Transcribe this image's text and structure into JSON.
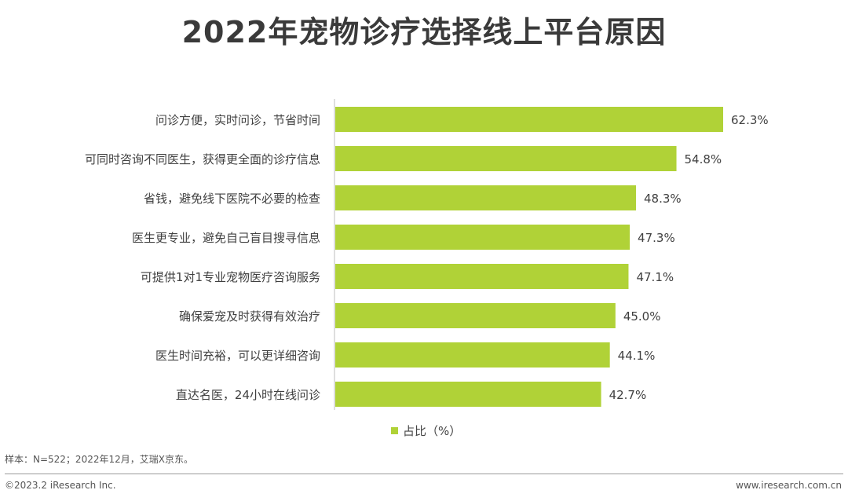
{
  "title": "2022年宠物诊疗选择线上平台原因",
  "chart_data": {
    "type": "bar",
    "orientation": "horizontal",
    "categories": [
      "问诊方便，实时问诊，节省时间",
      "可同时咨询不同医生，获得更全面的诊疗信息",
      "省钱，避免线下医院不必要的检查",
      "医生更专业，避免自己盲目搜寻信息",
      "可提供1对1专业宠物医疗咨询服务",
      "确保爱宠及时获得有效治疗",
      "医生时间充裕，可以更详细咨询",
      "直达名医，24小时在线问诊"
    ],
    "values": [
      62.3,
      54.8,
      48.3,
      47.3,
      47.1,
      45.0,
      44.1,
      42.7
    ],
    "value_labels": [
      "62.3%",
      "54.8%",
      "48.3%",
      "47.3%",
      "47.1%",
      "45.0%",
      "44.1%",
      "42.7%"
    ],
    "series_name": "占比（%）",
    "color": "#b0d237",
    "xlim": [
      0,
      65
    ],
    "grid": false,
    "legend_position": "bottom"
  },
  "footnote": "样本：N=522；2022年12月，艾瑞X京东。",
  "copyright": "©2023.2 iResearch Inc.",
  "website": "www.iresearch.com.cn"
}
